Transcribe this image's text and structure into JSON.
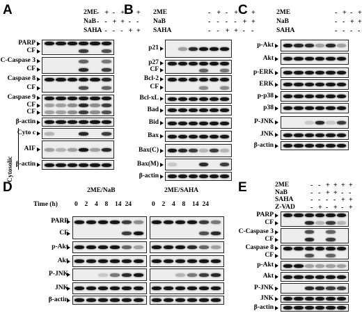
{
  "panels": [
    {
      "letter": "A",
      "conditions": [
        {
          "name": "2ME",
          "signs": [
            "-",
            "+",
            "-",
            "+",
            "-",
            "+"
          ]
        },
        {
          "name": "NaB",
          "signs": [
            "-",
            "-",
            "+",
            "+",
            "-",
            "-"
          ]
        },
        {
          "name": "SAHA",
          "signs": [
            "-",
            "-",
            "-",
            "-",
            "+",
            "+"
          ]
        }
      ],
      "blots": [
        {
          "labels": [
            "PARP",
            "CF"
          ],
          "bands": [
            [
              1,
              1,
              1,
              1,
              1,
              1
            ],
            [
              0,
              0,
              0,
              0.8,
              0,
              0.7
            ]
          ]
        },
        {
          "labels": [
            "C-Caspase 3",
            "CF"
          ],
          "bands": [
            [
              0,
              0,
              0,
              0.6,
              0,
              0.5
            ],
            [
              0,
              0,
              0,
              0.9,
              0,
              0.8
            ]
          ]
        },
        {
          "labels": [
            "Caspase 8",
            "CF"
          ],
          "bands": [
            [
              1,
              1,
              1,
              1,
              1,
              0.9
            ],
            [
              0,
              0,
              0,
              0.7,
              0,
              0.6
            ]
          ]
        },
        {
          "labels": [
            "Caspase 9",
            "CF",
            "CF"
          ],
          "bands": [
            [
              1,
              1,
              1,
              1,
              1,
              1
            ],
            [
              0.3,
              0.3,
              0.4,
              0.9,
              0.4,
              0.8
            ],
            [
              0.3,
              0.3,
              0.4,
              0.8,
              0.4,
              0.7
            ]
          ]
        },
        {
          "labels": [
            "β-actin"
          ],
          "bands": [
            [
              1,
              1,
              1,
              1,
              1,
              1
            ]
          ]
        },
        {
          "labels": [
            "Cyto c"
          ],
          "bands": [
            [
              0.2,
              0,
              0,
              0.9,
              0,
              0.8
            ]
          ]
        },
        {
          "labels": [
            "AIF"
          ],
          "bands": [
            [
              0.3,
              0.2,
              0.3,
              1,
              0.3,
              0.9
            ]
          ]
        },
        {
          "labels": [
            "β-actin"
          ],
          "bands": [
            [
              1,
              1,
              1,
              1,
              1,
              1
            ]
          ]
        }
      ],
      "side_label": "Cytosolic"
    },
    {
      "letter": "B",
      "conditions": [
        {
          "name": "2ME",
          "signs": [
            "-",
            "+",
            "-",
            "+",
            "-",
            "+"
          ]
        },
        {
          "name": "NaB",
          "signs": [
            "-",
            "-",
            "-",
            "-",
            "+",
            "+"
          ]
        },
        {
          "name": "SAHA",
          "signs": [
            "-",
            "-",
            "+",
            "+",
            "-",
            "-"
          ]
        }
      ],
      "blots": [
        {
          "labels": [
            "p21"
          ],
          "bands": [
            [
              0,
              0.3,
              0.9,
              1,
              1,
              1
            ]
          ]
        },
        {
          "labels": [
            "p27",
            "CF"
          ],
          "bands": [
            [
              1,
              1,
              1,
              1,
              1,
              1
            ],
            [
              0,
              0,
              0,
              0.6,
              0,
              0.5
            ]
          ]
        },
        {
          "labels": [
            "Bcl-2",
            "CF"
          ],
          "bands": [
            [
              1,
              1,
              1,
              1,
              1,
              1
            ],
            [
              0,
              0,
              0,
              0.4,
              0,
              0.4
            ]
          ]
        },
        {
          "labels": [
            "Bcl-xL"
          ],
          "bands": [
            [
              1,
              1,
              1,
              1,
              1,
              1
            ]
          ]
        },
        {
          "labels": [
            "Bad"
          ],
          "bands": [
            [
              1,
              1,
              1,
              1,
              1,
              1
            ]
          ]
        },
        {
          "labels": [
            "Bid"
          ],
          "bands": [
            [
              1,
              1,
              1,
              1,
              1,
              1
            ]
          ]
        },
        {
          "labels": [
            "Bax"
          ],
          "bands": [
            [
              1,
              1,
              1,
              1,
              1,
              1
            ]
          ]
        },
        {
          "labels": [
            "Bax(C)"
          ],
          "bands": [
            [
              1,
              0.9,
              0.8,
              0.2,
              0.8,
              0.2
            ]
          ]
        },
        {
          "labels": [
            "Bax(M)"
          ],
          "bands": [
            [
              0.1,
              0,
              0,
              0.9,
              0,
              0.8
            ]
          ]
        },
        {
          "labels": [
            "β-actin"
          ],
          "bands": [
            [
              1,
              1,
              1,
              1,
              1,
              1
            ]
          ]
        }
      ]
    },
    {
      "letter": "C",
      "conditions": [
        {
          "name": "2ME",
          "signs": [
            "-",
            "+",
            "-",
            "+",
            "-",
            "+"
          ]
        },
        {
          "name": "NaB",
          "signs": [
            "-",
            "-",
            "+",
            "+",
            "-",
            "-"
          ]
        },
        {
          "name": "SAHA",
          "signs": [
            "-",
            "-",
            "-",
            "-",
            "+",
            "+"
          ]
        }
      ],
      "blots": [
        {
          "labels": [
            "p-Akt"
          ],
          "bands": [
            [
              1,
              0.9,
              0.9,
              0.3,
              0.9,
              0.3
            ]
          ]
        },
        {
          "labels": [
            "Akt"
          ],
          "bands": [
            [
              1,
              1,
              1,
              1,
              1,
              1
            ]
          ]
        },
        {
          "labels": [
            "p-ERK"
          ],
          "bands": [
            [
              1,
              1,
              1,
              1,
              1,
              1
            ]
          ]
        },
        {
          "labels": [
            "ERK"
          ],
          "bands": [
            [
              1,
              1,
              1,
              1,
              1,
              1
            ]
          ]
        },
        {
          "labels": [
            "p-p38"
          ],
          "bands": [
            [
              1,
              1,
              1,
              1,
              1,
              1
            ]
          ]
        },
        {
          "labels": [
            "p38"
          ],
          "bands": [
            [
              1,
              1,
              1,
              1,
              1,
              1
            ]
          ]
        },
        {
          "labels": [
            "P-JNK"
          ],
          "bands": [
            [
              0,
              0,
              0.1,
              0.9,
              0.1,
              0.8
            ]
          ]
        },
        {
          "labels": [
            "JNK"
          ],
          "bands": [
            [
              1,
              1,
              1,
              1,
              1,
              1
            ]
          ]
        },
        {
          "labels": [
            "β-actin"
          ],
          "bands": [
            [
              1,
              1,
              1,
              1,
              1,
              1
            ]
          ]
        }
      ]
    },
    {
      "letter": "D",
      "groups": [
        "2ME/NaB",
        "2ME/SAHA"
      ],
      "time_label": "Time (h)",
      "times": [
        "0",
        "2",
        "4",
        "8",
        "14",
        "24"
      ],
      "blots": [
        {
          "labels": [
            "PARP",
            "CF"
          ],
          "bands": [
            [
              1,
              1,
              1,
              1,
              0.8,
              0.4,
              1,
              1,
              1,
              1,
              0.8,
              0.5
            ],
            [
              0,
              0,
              0,
              0,
              0.8,
              1,
              0,
              0,
              0,
              0,
              0.7,
              0.9
            ]
          ]
        },
        {
          "labels": [
            "p-Akt"
          ],
          "bands": [
            [
              1,
              1,
              1,
              1,
              0.6,
              0.3,
              1,
              1,
              1,
              0.9,
              0.6,
              0.3
            ]
          ]
        },
        {
          "labels": [
            "Akt"
          ],
          "bands": [
            [
              1,
              1,
              1,
              1,
              1,
              1,
              1,
              1,
              1,
              1,
              1,
              1
            ]
          ]
        },
        {
          "labels": [
            "P-JNK"
          ],
          "bands": [
            [
              0,
              0,
              0.1,
              0.5,
              0.9,
              1,
              0,
              0,
              0.2,
              0.5,
              0.8,
              0.9
            ]
          ]
        },
        {
          "labels": [
            "JNK"
          ],
          "bands": [
            [
              1,
              1,
              1,
              1,
              1,
              1,
              1,
              1,
              1,
              1,
              1,
              1
            ]
          ]
        },
        {
          "labels": [
            "β-actin"
          ],
          "bands": [
            [
              1,
              1,
              1,
              1,
              1,
              1,
              1,
              1,
              1,
              1,
              1,
              1
            ]
          ]
        }
      ]
    },
    {
      "letter": "E",
      "conditions": [
        {
          "name": "2ME",
          "signs": [
            "-",
            "-",
            "+",
            "+",
            "+",
            "+"
          ]
        },
        {
          "name": "NaB",
          "signs": [
            "-",
            "-",
            "+",
            "+",
            "-",
            "-"
          ]
        },
        {
          "name": "SAHA",
          "signs": [
            "-",
            "-",
            "-",
            "-",
            "+",
            "+"
          ]
        },
        {
          "name": "Z-VAD",
          "signs": [
            "-",
            "+",
            "-",
            "+",
            "-",
            "+"
          ]
        }
      ],
      "blots": [
        {
          "labels": [
            "PARP",
            "CF"
          ],
          "bands": [
            [
              1,
              1,
              1,
              1,
              1,
              1
            ],
            [
              0,
              0,
              0.9,
              0.2,
              0.8,
              0.2
            ]
          ]
        },
        {
          "labels": [
            "C-Caspase 3",
            "CF"
          ],
          "bands": [
            [
              0,
              0,
              0.7,
              0,
              0.6,
              0
            ],
            [
              0,
              0,
              0.9,
              0,
              0.8,
              0
            ]
          ]
        },
        {
          "labels": [
            "Caspase 8",
            "CF"
          ],
          "bands": [
            [
              1,
              1,
              1,
              1,
              1,
              1
            ],
            [
              0,
              0,
              0.7,
              0,
              0.6,
              0
            ]
          ]
        },
        {
          "labels": [
            "p-Akt"
          ],
          "bands": [
            [
              1,
              1,
              0.3,
              0.3,
              0.3,
              0.3
            ]
          ]
        },
        {
          "labels": [
            "Akt"
          ],
          "bands": [
            [
              1,
              1,
              1,
              1,
              1,
              1
            ]
          ]
        },
        {
          "labels": [
            "P-JNK"
          ],
          "bands": [
            [
              0,
              0,
              0.9,
              0.9,
              0.8,
              0.8
            ]
          ]
        },
        {
          "labels": [
            "JNK"
          ],
          "bands": [
            [
              1,
              1,
              1,
              1,
              1,
              1
            ]
          ]
        },
        {
          "labels": [
            "β-actin"
          ],
          "bands": [
            [
              1,
              1,
              1,
              1,
              1,
              1
            ]
          ]
        }
      ]
    }
  ]
}
